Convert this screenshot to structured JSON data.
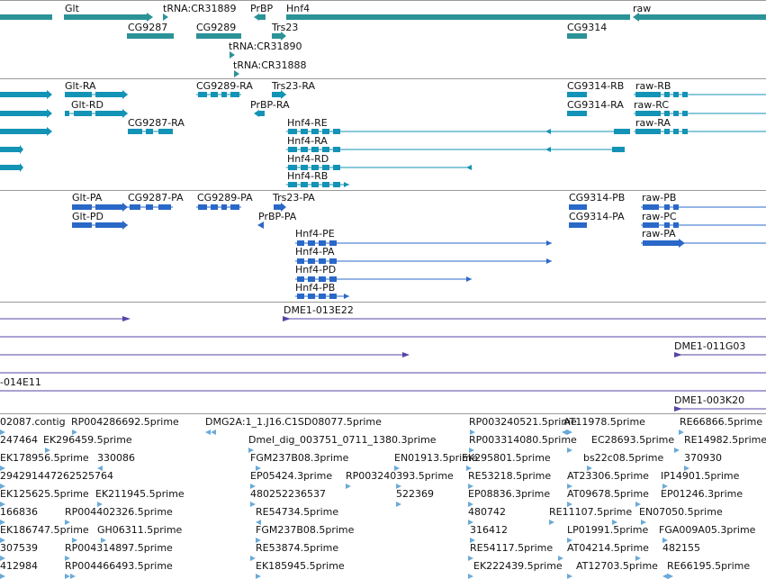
{
  "colors": {
    "gene": "#2b9397",
    "transcript": "#1393b5",
    "protein": "#2a68c8",
    "clone": "#5645a8",
    "est": "#6aaad8",
    "separator": "#9a9a9a",
    "label": "#111111"
  },
  "tracks": {
    "genes": {
      "labels": [
        {
          "text": "Glt"
        },
        {
          "text": "tRNA:CR31889"
        },
        {
          "text": "PrBP"
        },
        {
          "text": "Hnf4"
        },
        {
          "text": "raw"
        },
        {
          "text": "CG9287"
        },
        {
          "text": "CG9289"
        },
        {
          "text": "Trs23"
        },
        {
          "text": "CG9314"
        },
        {
          "text": "tRNA:CR31890"
        },
        {
          "text": "tRNA:CR31888"
        }
      ]
    },
    "transcripts": {
      "labels": [
        {
          "text": "Glt-RA"
        },
        {
          "text": "CG9289-RA"
        },
        {
          "text": "Trs23-RA"
        },
        {
          "text": "CG9314-RB"
        },
        {
          "text": "raw-RB"
        },
        {
          "text": "Glt-RD"
        },
        {
          "text": "PrBP-RA"
        },
        {
          "text": "CG9314-RA"
        },
        {
          "text": "raw-RC"
        },
        {
          "text": "CG9287-RA"
        },
        {
          "text": "Hnf4-RE"
        },
        {
          "text": "raw-RA"
        },
        {
          "text": "Hnf4-RA"
        },
        {
          "text": "Hnf4-RD"
        },
        {
          "text": "Hnf4-RB"
        }
      ]
    },
    "proteins": {
      "labels": [
        {
          "text": "Glt-PA"
        },
        {
          "text": "CG9287-PA"
        },
        {
          "text": "CG9289-PA"
        },
        {
          "text": "Trs23-PA"
        },
        {
          "text": "CG9314-PB"
        },
        {
          "text": "raw-PB"
        },
        {
          "text": "Glt-PD"
        },
        {
          "text": "PrBP-PA"
        },
        {
          "text": "CG9314-PA"
        },
        {
          "text": "raw-PC"
        },
        {
          "text": "raw-PA"
        },
        {
          "text": "Hnf4-PE"
        },
        {
          "text": "Hnf4-PA"
        },
        {
          "text": "Hnf4-PD"
        },
        {
          "text": "Hnf4-PB"
        }
      ]
    },
    "clones": {
      "labels": [
        {
          "text": "DME1-013E22"
        },
        {
          "text": "DME1-011G03"
        },
        {
          "text": "-014E11"
        },
        {
          "text": "DME1-003K20"
        }
      ]
    },
    "ests": {
      "labels": [
        {
          "text": "02087.contig"
        },
        {
          "text": "RP004286692.5prime"
        },
        {
          "text": "DMG2A:1_1.J16.C1SD08077.5prime"
        },
        {
          "text": "RP003240521.5prime"
        },
        {
          "text": "AT11978.5prime"
        },
        {
          "text": "RE66866.5prime"
        },
        {
          "text": "247464"
        },
        {
          "text": "EK296459.5prime"
        },
        {
          "text": "Dmel_dig_003751_0711_1380.3prime"
        },
        {
          "text": "RP003314080.5prime"
        },
        {
          "text": "EC28693.5prime"
        },
        {
          "text": "RE14982.5prime"
        },
        {
          "text": "EK178956.5prime"
        },
        {
          "text": "330086"
        },
        {
          "text": "FGM237B08.3prime"
        },
        {
          "text": "EN01913.5prime"
        },
        {
          "text": "EK295801.5prime"
        },
        {
          "text": "bs22c08.5prime"
        },
        {
          "text": "370930"
        },
        {
          "text": "294291447262525764"
        },
        {
          "text": "EP05424.3prime"
        },
        {
          "text": "RP003240393.5prime"
        },
        {
          "text": "RE53218.5prime"
        },
        {
          "text": "AT23306.5prime"
        },
        {
          "text": "IP14901.5prime"
        },
        {
          "text": "EK125625.5prime"
        },
        {
          "text": "EK211945.5prime"
        },
        {
          "text": "480252236537"
        },
        {
          "text": "522369"
        },
        {
          "text": "EP08836.3prime"
        },
        {
          "text": "AT09678.5prime"
        },
        {
          "text": "EP01246.3prime"
        },
        {
          "text": "166836"
        },
        {
          "text": "RP004402326.5prime"
        },
        {
          "text": "RE54734.5prime"
        },
        {
          "text": "480742"
        },
        {
          "text": "RE11107.5prime"
        },
        {
          "text": "EN07050.5prime"
        },
        {
          "text": "EK186747.5prime"
        },
        {
          "text": "GH06311.5prime"
        },
        {
          "text": "FGM237B08.5prime"
        },
        {
          "text": "316412"
        },
        {
          "text": "LP01991.5prime"
        },
        {
          "text": "FGA009A05.3prime"
        },
        {
          "text": "307539"
        },
        {
          "text": "RP004314897.5prime"
        },
        {
          "text": "RE53874.5prime"
        },
        {
          "text": "RE54117.5prime"
        },
        {
          "text": "AT04214.5prime"
        },
        {
          "text": "482155"
        },
        {
          "text": "412984"
        },
        {
          "text": "RP004466493.5prime"
        },
        {
          "text": "EK185945.5prime"
        },
        {
          "text": "EK222439.5prime"
        },
        {
          "text": "AT12703.5prime"
        },
        {
          "text": "RE66195.5prime"
        }
      ]
    }
  }
}
